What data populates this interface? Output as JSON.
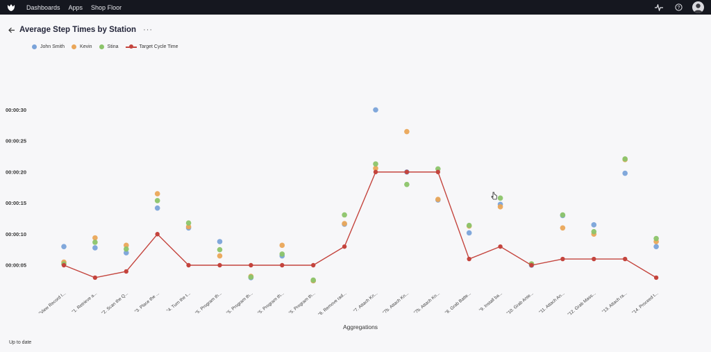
{
  "topbar": {
    "nav": [
      "Dashboards",
      "Apps",
      "Shop Floor"
    ],
    "icons": [
      "activity-icon",
      "help-icon",
      "user-avatar"
    ]
  },
  "header": {
    "title": "Average Step Times by Station",
    "more": "···"
  },
  "status": "Up to date",
  "colors": {
    "john": "#7aa3d9",
    "kevin": "#eaa659",
    "stina": "#8cc46a",
    "target": "#c4443d"
  },
  "chart_data": {
    "type": "scatter",
    "xlabel": "Aggregations",
    "ylabel": "",
    "ylim": [
      0,
      32
    ],
    "yticks": [
      5,
      10,
      15,
      20,
      25,
      30
    ],
    "ytick_labels": [
      "00:00:05",
      "00:00:10",
      "00:00:15",
      "00:00:20",
      "00:00:25",
      "00:00:30"
    ],
    "categories": [
      "\"View Record I...",
      "\"1. Retrieve a...",
      "\"2. Scan the Q...",
      "\"3. Place the ...",
      "\"4. Turn the t...",
      "\"5. Program th...",
      "\"5. Program th...",
      "\"5. Program th...",
      "\"5. Program th...",
      "\"6. Remove rad...",
      "\"7. Attach Kn...",
      "\"7b. Attach Kn...",
      "\"7b. Attach Kn...",
      "\"8. Grab Batte...",
      "\"9. Install ba...",
      "\"10. Grab Ante...",
      "\"11. Attach An...",
      "\"12. Grab Mass...",
      "\"13. Attach ra...",
      "\"14. Proceed t..."
    ],
    "series": [
      {
        "name": "John Smith",
        "color": "#7aa3d9",
        "values": [
          8,
          7.8,
          7,
          14.2,
          11,
          8.8,
          3,
          6.5,
          2.5,
          11.6,
          30,
          20,
          15.5,
          10.2,
          14.8,
          5,
          13,
          11.5,
          19.8,
          8
        ]
      },
      {
        "name": "Kevin",
        "color": "#eaa659",
        "values": [
          5.5,
          9.4,
          8.2,
          16.5,
          11.2,
          6.5,
          3.2,
          8.2,
          2.5,
          11.7,
          20.6,
          26.5,
          15.6,
          11.3,
          14.4,
          5.2,
          11,
          10,
          22,
          8.8
        ]
      },
      {
        "name": "Stina",
        "color": "#8cc46a",
        "values": [
          5.2,
          8.7,
          7.6,
          15.4,
          11.8,
          7.5,
          3.1,
          6.8,
          2.6,
          13.1,
          21.3,
          18,
          20.5,
          11.4,
          15.8,
          5.2,
          13.1,
          10.4,
          22.1,
          9.3
        ]
      },
      {
        "name": "Target Cycle Time",
        "color": "#c4443d",
        "line": true,
        "values": [
          5,
          3,
          4,
          10,
          5,
          5,
          5,
          5,
          5,
          8,
          20,
          20,
          20,
          6,
          8,
          5,
          6,
          6,
          6,
          3
        ]
      }
    ]
  }
}
